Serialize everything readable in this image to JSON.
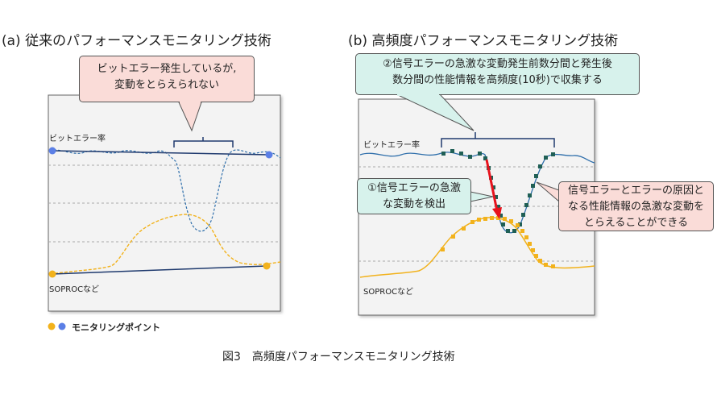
{
  "panel_a": {
    "title": "(a) 従来のパフォーマンスモニタリング技術",
    "callout": "ビットエラー発生しているが,\n変動をとらえられない",
    "label_ber": "ビットエラー率",
    "label_soproc": "SOPROCなど"
  },
  "panel_b": {
    "title": "(b) 高頻度パフォーマンスモニタリング技術",
    "callout_top": "②信号エラーの急激な変動発生前数分間と発生後\n数分間の性能情報を高頻度(10秒)で収集する",
    "callout_detect": "①信号エラーの急激\nな変動を検出",
    "callout_right": "信号エラーとエラーの原因と\nなる性能情報の急激な変動を\nとらえることができる",
    "label_ber": "ビットエラー率",
    "label_soproc": "SOPROCなど"
  },
  "legend": {
    "text": "モニタリングポイント"
  },
  "caption": "図3　高頻度パフォーマンスモニタリング技術",
  "colors": {
    "ber_line": "#2f6fab",
    "soproc_line": "#f2b21c",
    "teal_marker": "#1f5f55",
    "orange_marker": "#f2b21c",
    "blue_dot": "#5b7fe6",
    "red_arrow": "#e8121c",
    "callout_pink": "#fadcd8",
    "callout_green": "#d7f2ec"
  }
}
